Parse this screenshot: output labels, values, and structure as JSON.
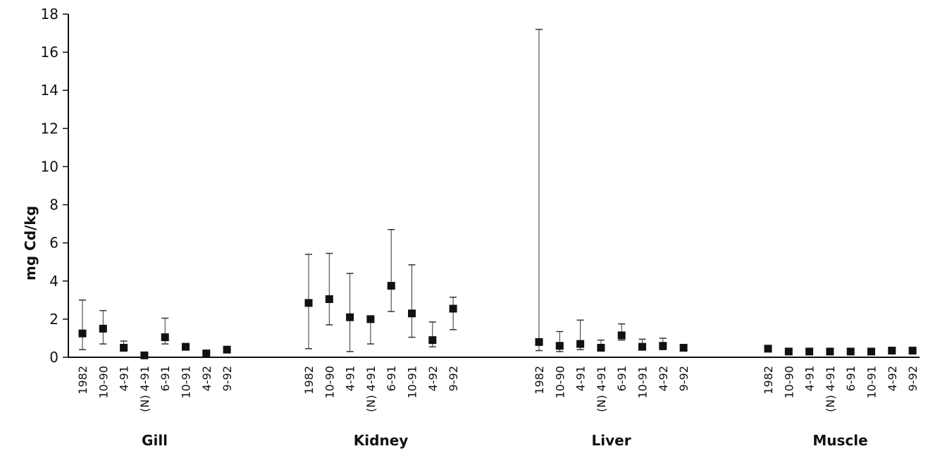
{
  "chart_data": {
    "type": "scatter",
    "ylabel": "mg Cd/kg",
    "ylim": [
      0,
      18
    ],
    "yticks": [
      0,
      2,
      4,
      6,
      8,
      10,
      12,
      14,
      16,
      18
    ],
    "grid": false,
    "marker": "square",
    "error_bars": "min-max range",
    "colors": {
      "marker": "#111111",
      "whisker": "#333333",
      "axis": "#111111"
    },
    "groups": [
      {
        "name": "Gill",
        "categories": [
          "1982",
          "10-90",
          "4-91",
          "(N) 4-91",
          "6-91",
          "10-91",
          "4-92",
          "9-92"
        ],
        "values": [
          1.25,
          1.5,
          0.5,
          0.1,
          1.05,
          0.55,
          0.2,
          0.4
        ],
        "low": [
          0.4,
          0.7,
          0.4,
          0.05,
          0.7,
          0.4,
          0.15,
          0.35
        ],
        "high": [
          3.0,
          2.45,
          0.85,
          0.15,
          2.05,
          0.7,
          0.25,
          0.5
        ]
      },
      {
        "name": "Kidney",
        "categories": [
          "1982",
          "10-90",
          "4-91",
          "(N) 4-91",
          "6-91",
          "10-91",
          "4-92",
          "9-92"
        ],
        "values": [
          2.85,
          3.05,
          2.1,
          2.0,
          3.75,
          2.3,
          0.9,
          2.55
        ],
        "low": [
          0.45,
          1.7,
          0.3,
          0.7,
          2.4,
          1.05,
          0.55,
          1.45
        ],
        "high": [
          5.4,
          5.45,
          4.4,
          2.1,
          6.7,
          4.85,
          1.85,
          3.15
        ]
      },
      {
        "name": "Liver",
        "categories": [
          "1982",
          "10-90",
          "4-91",
          "(N) 4-91",
          "6-91",
          "10-91",
          "4-92",
          "9-92"
        ],
        "values": [
          0.8,
          0.6,
          0.7,
          0.5,
          1.15,
          0.55,
          0.6,
          0.5
        ],
        "low": [
          0.35,
          0.3,
          0.4,
          0.35,
          0.9,
          0.4,
          0.4,
          0.4
        ],
        "high": [
          17.2,
          1.35,
          1.95,
          0.9,
          1.75,
          0.95,
          1.0,
          0.6
        ]
      },
      {
        "name": "Muscle",
        "categories": [
          "1982",
          "10-90",
          "4-91",
          "(N) 4-91",
          "6-91",
          "10-91",
          "4-92",
          "9-92"
        ],
        "values": [
          0.45,
          0.3,
          0.3,
          0.3,
          0.3,
          0.3,
          0.35,
          0.35
        ],
        "low": [
          0.4,
          0.25,
          0.25,
          0.25,
          0.25,
          0.25,
          0.3,
          0.3
        ],
        "high": [
          0.5,
          0.35,
          0.35,
          0.35,
          0.35,
          0.35,
          0.4,
          0.4
        ]
      }
    ]
  }
}
